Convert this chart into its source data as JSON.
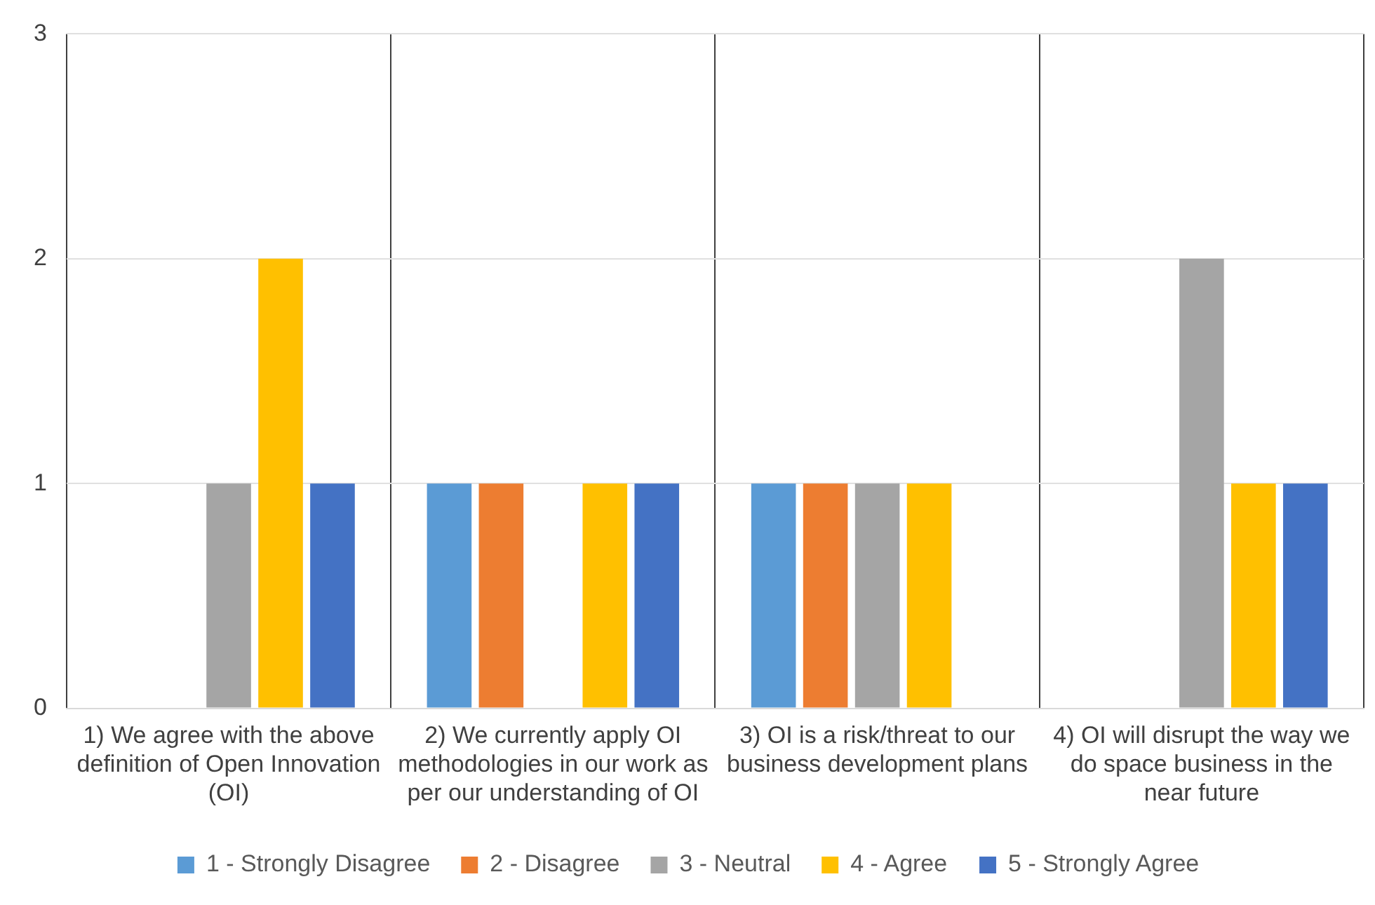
{
  "chart_data": {
    "type": "bar",
    "categories": [
      "1) We agree with the above definition of Open Innovation (OI)",
      "2) We currently apply OI methodologies in our work as per our understanding of OI",
      "3) OI is a risk/threat to our business development plans",
      "4) OI will disrupt the way we do space business in the near future"
    ],
    "series": [
      {
        "name": "1 - Strongly Disagree",
        "color": "#5b9bd5",
        "values": [
          0,
          1,
          1,
          0
        ]
      },
      {
        "name": "2 - Disagree",
        "color": "#ed7d31",
        "values": [
          0,
          1,
          1,
          0
        ]
      },
      {
        "name": "3 - Neutral",
        "color": "#a5a5a5",
        "values": [
          1,
          0,
          1,
          2
        ]
      },
      {
        "name": "4 - Agree",
        "color": "#ffc000",
        "values": [
          2,
          1,
          1,
          1
        ]
      },
      {
        "name": "5 - Strongly Agree",
        "color": "#4472c4",
        "values": [
          1,
          1,
          0,
          1
        ]
      }
    ],
    "ylim": [
      0,
      3
    ],
    "yticks": [
      0,
      1,
      2,
      3
    ],
    "grid": true,
    "legend": "bottom"
  }
}
